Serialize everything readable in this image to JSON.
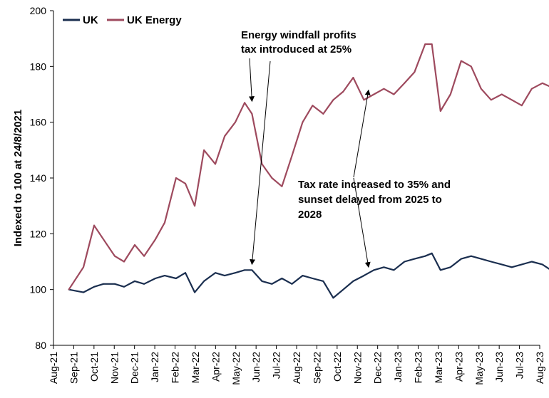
{
  "chart_data": {
    "type": "line",
    "title": "",
    "xlabel": "",
    "ylabel": "Indexed to 100 at 24/8/2021",
    "ylim": [
      80,
      200
    ],
    "yticks": [
      80,
      100,
      120,
      140,
      160,
      180,
      200
    ],
    "grid": false,
    "legend_position": "top-left",
    "x_tick_labels": [
      "Aug-21",
      "Sep-21",
      "Oct-21",
      "Nov-21",
      "Dec-21",
      "Jan-22",
      "Feb-22",
      "Mar-22",
      "Apr-22",
      "May-22",
      "Jun-22",
      "Jul-22",
      "Aug-22",
      "Sep-22",
      "Oct-22",
      "Nov-22",
      "Dec-22",
      "Jan-23",
      "Feb-23",
      "Mar-23",
      "Apr-23",
      "May-23",
      "Jun-23",
      "Jul-23",
      "Aug-23"
    ],
    "x": [
      "2021-08-24",
      "2021-09-15",
      "2021-10-01",
      "2021-10-15",
      "2021-11-01",
      "2021-11-15",
      "2021-12-01",
      "2021-12-15",
      "2022-01-01",
      "2022-01-15",
      "2022-02-01",
      "2022-02-15",
      "2022-03-01",
      "2022-03-15",
      "2022-04-01",
      "2022-04-15",
      "2022-05-01",
      "2022-05-15",
      "2022-05-26",
      "2022-06-10",
      "2022-06-25",
      "2022-07-10",
      "2022-07-25",
      "2022-08-10",
      "2022-08-25",
      "2022-09-10",
      "2022-09-25",
      "2022-10-10",
      "2022-10-25",
      "2022-11-10",
      "2022-11-25",
      "2022-12-10",
      "2022-12-25",
      "2023-01-10",
      "2023-01-25",
      "2023-02-10",
      "2023-02-20",
      "2023-03-05",
      "2023-03-20",
      "2023-04-05",
      "2023-04-20",
      "2023-05-05",
      "2023-05-20",
      "2023-06-05",
      "2023-06-20",
      "2023-07-05",
      "2023-07-20",
      "2023-08-05",
      "2023-08-24"
    ],
    "series": [
      {
        "name": "UK",
        "color": "#1a2e4f",
        "values": [
          100,
          99,
          101,
          102,
          102,
          101,
          103,
          102,
          104,
          105,
          104,
          106,
          99,
          103,
          106,
          105,
          106,
          107,
          107,
          103,
          102,
          104,
          102,
          105,
          104,
          103,
          97,
          100,
          103,
          105,
          107,
          108,
          107,
          110,
          111,
          112,
          113,
          107,
          108,
          111,
          112,
          111,
          110,
          109,
          108,
          109,
          110,
          109,
          106
        ]
      },
      {
        "name": "UK Energy",
        "color": "#9e4a5e",
        "values": [
          100,
          108,
          123,
          118,
          112,
          110,
          116,
          112,
          118,
          124,
          140,
          138,
          130,
          150,
          145,
          155,
          160,
          167,
          163,
          145,
          140,
          137,
          148,
          160,
          166,
          163,
          168,
          171,
          176,
          168,
          170,
          172,
          170,
          174,
          178,
          188,
          188,
          164,
          170,
          182,
          180,
          172,
          168,
          170,
          168,
          166,
          172,
          174,
          172
        ]
      }
    ],
    "annotations": [
      {
        "lines": [
          "Energy windfall profits",
          "tax introduced at 25%"
        ],
        "x": "2022-05-26",
        "y_targets": [
          167,
          107
        ]
      },
      {
        "lines": [
          "Tax rate increased to 35% and",
          "sunset delayed from 2025 to",
          "2028"
        ],
        "x": "2022-11-17",
        "y_targets": [
          171,
          106
        ]
      }
    ]
  }
}
